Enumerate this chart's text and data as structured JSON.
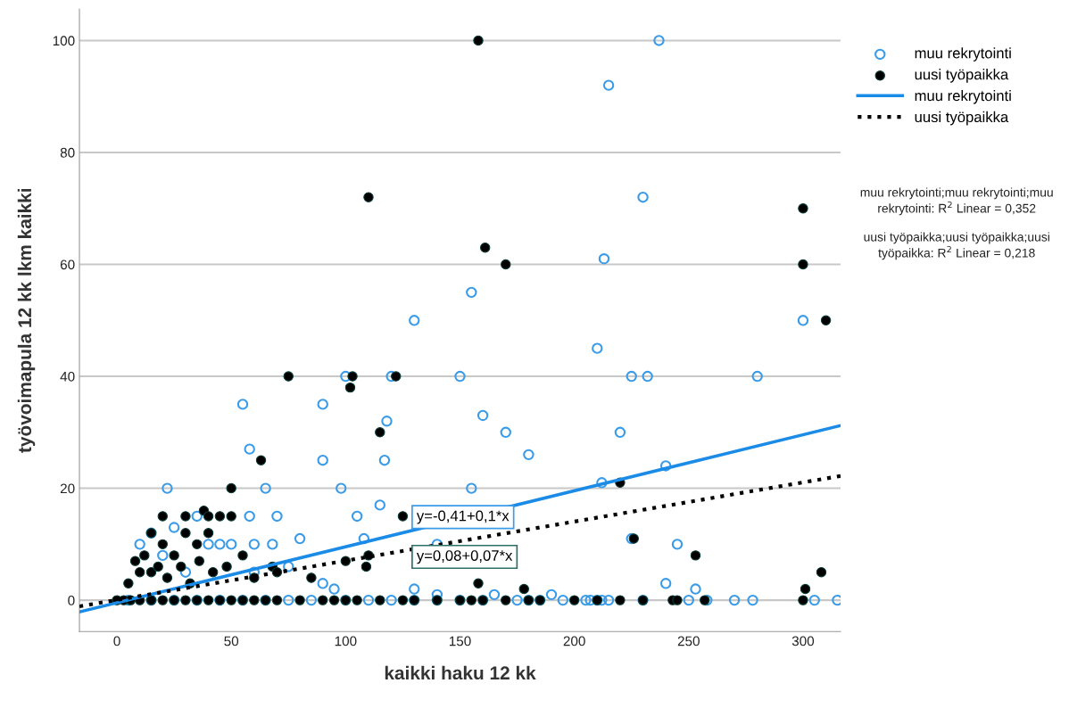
{
  "chart_data": {
    "type": "scatter",
    "xlabel": "kaikki haku 12 kk",
    "ylabel": "työvoimapula 12 kk lkm kaikki",
    "xlim": [
      -16.4,
      316.4
    ],
    "ylim": [
      -5.6,
      105.6
    ],
    "xticks": [
      0,
      50,
      100,
      150,
      200,
      250,
      300
    ],
    "yticks": [
      0,
      20,
      40,
      60,
      80,
      100
    ],
    "grid": "y",
    "legend": "right",
    "marker": "circle",
    "series": [
      {
        "name": "muu rekrytointi",
        "color": "#3a9be8",
        "x": [
          237,
          215,
          230,
          213,
          155,
          130,
          300,
          210,
          150,
          225,
          232,
          280,
          100,
          120,
          55,
          90,
          160,
          118,
          170,
          220,
          58,
          180,
          90,
          117,
          240,
          22,
          65,
          98,
          155,
          212,
          115,
          70,
          105,
          58,
          60,
          68,
          45,
          245,
          225,
          80,
          108,
          140,
          240,
          253,
          190,
          10,
          15,
          20,
          25,
          30,
          35,
          40,
          50,
          60,
          75,
          90,
          95,
          130,
          140,
          165,
          5,
          15,
          25,
          35,
          45,
          55,
          65,
          75,
          85,
          100,
          110,
          120,
          130,
          140,
          150,
          160,
          175,
          180,
          185,
          195,
          205,
          207,
          210,
          212,
          215,
          230,
          250,
          258,
          270,
          278,
          305,
          315
        ],
        "values": [
          100,
          92,
          72,
          61,
          55,
          50,
          50,
          45,
          40,
          40,
          40,
          40,
          40,
          40,
          35,
          35,
          33,
          32,
          30,
          30,
          27,
          26,
          25,
          25,
          24,
          20,
          20,
          20,
          20,
          21,
          17,
          15,
          15,
          15,
          10,
          10,
          10,
          10,
          11,
          11,
          11,
          10,
          3,
          2,
          1,
          10,
          12,
          8,
          13,
          5,
          15,
          10,
          10,
          5,
          6,
          3,
          2,
          2,
          1,
          1,
          0,
          0,
          0,
          0,
          0,
          0,
          0,
          0,
          0,
          0,
          0,
          0,
          0,
          0,
          0,
          0,
          0,
          0,
          0,
          0,
          0,
          0,
          0,
          0,
          0,
          0,
          0,
          0,
          0,
          0,
          0,
          0
        ]
      },
      {
        "name": "uusi työpaikka",
        "color": "#000000",
        "x": [
          158,
          110,
          300,
          161,
          170,
          300,
          310,
          75,
          103,
          122,
          102,
          115,
          63,
          50,
          220,
          226,
          253,
          308,
          301,
          178,
          158,
          125,
          30,
          20,
          38,
          40,
          45,
          50,
          15,
          20,
          25,
          30,
          35,
          40,
          10,
          5,
          8,
          12,
          15,
          18,
          22,
          28,
          32,
          36,
          42,
          48,
          55,
          60,
          68,
          70,
          85,
          100,
          110,
          109,
          0,
          3,
          6,
          10,
          15,
          20,
          25,
          30,
          35,
          40,
          45,
          50,
          55,
          60,
          65,
          70,
          80,
          90,
          95,
          100,
          105,
          115,
          125,
          130,
          140,
          150,
          155,
          160,
          170,
          180,
          185,
          200,
          210,
          220,
          230,
          243,
          245,
          257,
          300
        ],
        "values": [
          100,
          72,
          70,
          63,
          60,
          60,
          50,
          40,
          40,
          40,
          38,
          30,
          25,
          20,
          21,
          11,
          8,
          5,
          2,
          2,
          3,
          15,
          15,
          15,
          16,
          15,
          15,
          15,
          12,
          10,
          8,
          12,
          10,
          12,
          5,
          3,
          7,
          8,
          5,
          6,
          4,
          6,
          3,
          7,
          5,
          6,
          8,
          4,
          6,
          5,
          4,
          7,
          8,
          6,
          0,
          0,
          0,
          0,
          0,
          0,
          0,
          0,
          0,
          0,
          0,
          0,
          0,
          0,
          0,
          0,
          0,
          0,
          0,
          0,
          0,
          0,
          0,
          0,
          0,
          0,
          0,
          0,
          0,
          0,
          0,
          0,
          0,
          0,
          0,
          0,
          0,
          0,
          0
        ]
      },
      {
        "name": "muu rekrytointi",
        "type": "line",
        "color": "#1a8be6",
        "line_style": "solid",
        "marker": "none",
        "x": [
          -16.4,
          316.4
        ],
        "values": [
          -2.1,
          31.2
        ]
      },
      {
        "name": "uusi työpaikka",
        "type": "line",
        "color": "#000000",
        "line_style": "dotted",
        "marker": "none",
        "x": [
          -16.4,
          316.4
        ],
        "values": [
          -1.1,
          22.2
        ]
      }
    ],
    "annotations": [
      "y=-0,41+0,1*x",
      "y=0,08+0,07*x",
      "muu rekrytointi;muu rekrytointi;muu rekrytointi: R$^{2}$ Linear = 0,352",
      "uusi työpaikka;uusi työpaikka;uusi työpaikka: R$^{2}$ Linear = 0,218"
    ]
  }
}
